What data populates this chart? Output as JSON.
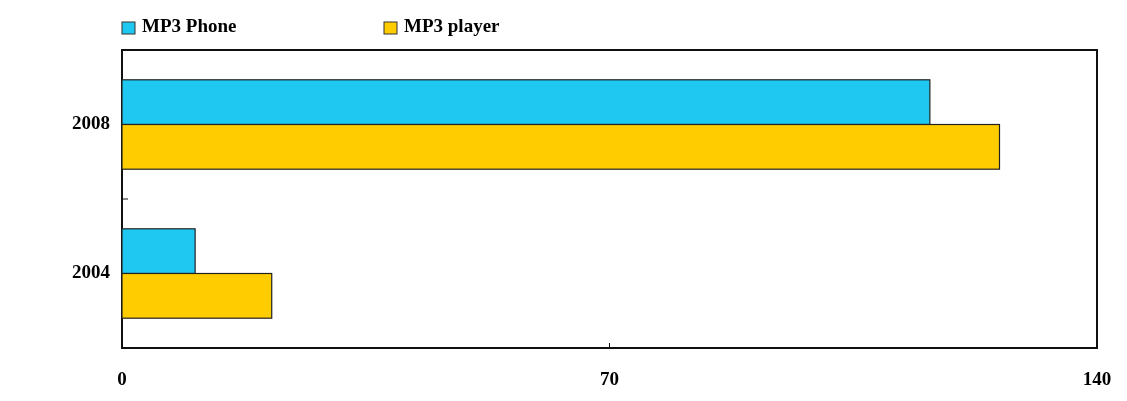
{
  "chart_data": {
    "type": "bar",
    "orientation": "horizontal",
    "categories": [
      "2008",
      "2004"
    ],
    "series": [
      {
        "name": "MP3 Phone",
        "color": "#1ec8f0",
        "values": [
          116,
          10.5
        ]
      },
      {
        "name": "MP3 player",
        "color": "#ffcc00",
        "values": [
          126,
          21.5
        ]
      }
    ],
    "xlim": [
      0,
      140
    ],
    "xticks": [
      0,
      70,
      140
    ],
    "legend": "top left",
    "grid": false
  }
}
